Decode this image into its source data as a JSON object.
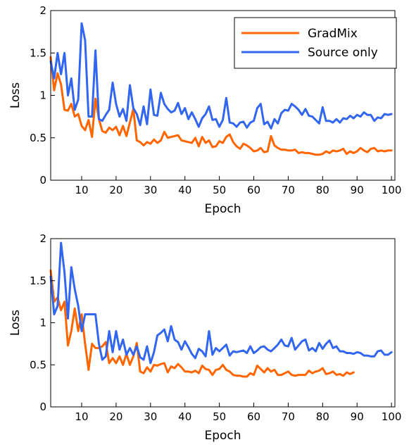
{
  "chart_data": [
    {
      "type": "line",
      "xlabel": "Epoch",
      "ylabel": "Loss",
      "xlim": [
        1,
        101
      ],
      "ylim": [
        0,
        2
      ],
      "x_ticks": [
        10,
        20,
        30,
        40,
        50,
        60,
        70,
        80,
        90,
        100
      ],
      "y_ticks": [
        0,
        0.5,
        1,
        1.5,
        2
      ],
      "y_tick_labels": [
        "0",
        "0.5",
        "1",
        "1.5",
        "2"
      ],
      "grid": false,
      "legend": "top-right",
      "series": [
        {
          "name": "GradMix",
          "color": "#ff6600",
          "x": [
            1,
            2,
            3,
            4,
            5,
            6,
            7,
            8,
            9,
            10,
            11,
            12,
            13,
            14,
            15,
            16,
            17,
            18,
            19,
            20,
            21,
            22,
            23,
            24,
            25,
            26,
            27,
            28,
            29,
            30,
            31,
            32,
            33,
            34,
            35,
            36,
            37,
            38,
            39,
            40,
            41,
            42,
            43,
            44,
            45,
            46,
            47,
            48,
            49,
            50,
            51,
            52,
            53,
            54,
            55,
            56,
            57,
            58,
            59,
            60,
            61,
            62,
            63,
            64,
            65,
            66,
            67,
            68,
            69,
            70,
            71,
            72,
            73,
            74,
            75,
            76,
            77,
            78,
            79,
            80,
            81,
            82,
            83,
            84,
            85,
            86,
            87,
            88,
            89,
            90,
            91,
            92,
            93,
            94,
            95,
            96,
            97,
            98,
            99,
            100
          ],
          "values": [
            1.45,
            1.06,
            1.26,
            1.13,
            0.83,
            0.82,
            0.9,
            0.75,
            0.78,
            0.64,
            0.59,
            0.71,
            0.51,
            0.96,
            0.72,
            0.58,
            0.56,
            0.62,
            0.59,
            0.63,
            0.53,
            0.64,
            0.52,
            0.68,
            0.84,
            0.47,
            0.45,
            0.41,
            0.45,
            0.43,
            0.48,
            0.44,
            0.47,
            0.57,
            0.5,
            0.51,
            0.52,
            0.53,
            0.47,
            0.46,
            0.45,
            0.44,
            0.5,
            0.4,
            0.51,
            0.44,
            0.47,
            0.39,
            0.4,
            0.46,
            0.44,
            0.51,
            0.54,
            0.45,
            0.4,
            0.37,
            0.43,
            0.41,
            0.38,
            0.34,
            0.35,
            0.38,
            0.33,
            0.34,
            0.52,
            0.41,
            0.38,
            0.36,
            0.36,
            0.35,
            0.35,
            0.36,
            0.32,
            0.33,
            0.32,
            0.32,
            0.31,
            0.3,
            0.3,
            0.31,
            0.34,
            0.32,
            0.35,
            0.34,
            0.35,
            0.37,
            0.31,
            0.34,
            0.32,
            0.34,
            0.38,
            0.35,
            0.33,
            0.37,
            0.38,
            0.34,
            0.35,
            0.34,
            0.35,
            0.35
          ]
        },
        {
          "name": "Source only",
          "color": "#3366ee",
          "x": [
            1,
            2,
            3,
            4,
            5,
            6,
            7,
            8,
            9,
            10,
            11,
            12,
            13,
            14,
            15,
            16,
            17,
            18,
            19,
            20,
            21,
            22,
            23,
            24,
            25,
            26,
            27,
            28,
            29,
            30,
            31,
            32,
            33,
            34,
            35,
            36,
            37,
            38,
            39,
            40,
            41,
            42,
            43,
            44,
            45,
            46,
            47,
            48,
            49,
            50,
            51,
            52,
            53,
            54,
            55,
            56,
            57,
            58,
            59,
            60,
            61,
            62,
            63,
            64,
            65,
            66,
            67,
            68,
            69,
            70,
            71,
            72,
            73,
            74,
            75,
            76,
            77,
            78,
            79,
            80,
            81,
            82,
            83,
            84,
            85,
            86,
            87,
            88,
            89,
            90,
            91,
            92,
            93,
            94,
            95,
            96,
            97,
            98,
            99,
            100
          ],
          "values": [
            1.4,
            1.2,
            1.5,
            1.25,
            1.5,
            1.0,
            1.2,
            0.83,
            0.95,
            1.85,
            1.65,
            0.75,
            0.75,
            1.53,
            0.72,
            0.7,
            0.77,
            0.83,
            1.15,
            0.9,
            0.75,
            0.84,
            0.7,
            1.12,
            0.85,
            0.78,
            0.65,
            0.87,
            0.66,
            1.07,
            0.77,
            0.76,
            1.03,
            0.9,
            0.84,
            0.8,
            0.82,
            0.91,
            0.78,
            0.85,
            0.72,
            0.8,
            0.72,
            0.63,
            0.73,
            0.78,
            0.87,
            0.71,
            0.72,
            0.63,
            0.71,
            0.97,
            0.68,
            0.67,
            0.63,
            0.68,
            0.69,
            0.62,
            0.68,
            0.7,
            0.85,
            0.9,
            0.66,
            0.69,
            0.61,
            0.72,
            0.67,
            0.79,
            0.83,
            0.82,
            0.9,
            0.87,
            0.83,
            0.77,
            0.84,
            0.76,
            0.75,
            0.71,
            0.67,
            0.86,
            0.7,
            0.7,
            0.68,
            0.72,
            0.68,
            0.73,
            0.72,
            0.76,
            0.73,
            0.77,
            0.75,
            0.8,
            0.77,
            0.77,
            0.7,
            0.74,
            0.73,
            0.78,
            0.77,
            0.78
          ]
        }
      ]
    },
    {
      "type": "line",
      "xlabel": "Epoch",
      "ylabel": "Loss",
      "xlim": [
        1,
        101
      ],
      "ylim": [
        0,
        2
      ],
      "x_ticks": [
        10,
        20,
        30,
        40,
        50,
        60,
        70,
        80,
        90,
        100
      ],
      "y_ticks": [
        0,
        0.5,
        1,
        1.5,
        2
      ],
      "y_tick_labels": [
        "0",
        "0.5",
        "1",
        "1.5",
        "2"
      ],
      "grid": false,
      "legend": "none",
      "series": [
        {
          "color": "#ff6600",
          "x": [
            1,
            2,
            3,
            4,
            5,
            6,
            7,
            8,
            9,
            10,
            11,
            12,
            13,
            14,
            15,
            16,
            17,
            18,
            19,
            20,
            21,
            22,
            23,
            24,
            25,
            26,
            27,
            28,
            29,
            30,
            31,
            32,
            33,
            34,
            35,
            36,
            37,
            38,
            39,
            40,
            41,
            42,
            43,
            44,
            45,
            46,
            47,
            48,
            49,
            50,
            51,
            52,
            53,
            54,
            55,
            56,
            57,
            58,
            59,
            60,
            61,
            62,
            63,
            64,
            65,
            66,
            67,
            68,
            69,
            70,
            71,
            72,
            73,
            74,
            75,
            76,
            77,
            78,
            79,
            80,
            81,
            82,
            83,
            84,
            85,
            86,
            87,
            88,
            89
          ],
          "values": [
            1.62,
            1.25,
            1.3,
            1.15,
            1.25,
            0.73,
            0.9,
            1.17,
            0.9,
            1.1,
            0.75,
            0.44,
            0.75,
            0.7,
            0.7,
            0.72,
            0.77,
            0.52,
            0.58,
            0.52,
            0.6,
            0.5,
            0.63,
            0.5,
            0.6,
            0.76,
            0.42,
            0.4,
            0.47,
            0.42,
            0.5,
            0.49,
            0.51,
            0.52,
            0.41,
            0.48,
            0.46,
            0.51,
            0.47,
            0.42,
            0.42,
            0.41,
            0.43,
            0.4,
            0.49,
            0.45,
            0.44,
            0.38,
            0.44,
            0.45,
            0.5,
            0.44,
            0.42,
            0.38,
            0.37,
            0.37,
            0.36,
            0.36,
            0.4,
            0.38,
            0.49,
            0.45,
            0.41,
            0.46,
            0.42,
            0.44,
            0.38,
            0.38,
            0.4,
            0.42,
            0.38,
            0.37,
            0.38,
            0.38,
            0.38,
            0.43,
            0.4,
            0.42,
            0.43,
            0.46,
            0.39,
            0.4,
            0.42,
            0.38,
            0.39,
            0.37,
            0.41,
            0.39,
            0.41
          ]
        },
        {
          "color": "#3366ee",
          "x": [
            1,
            2,
            3,
            4,
            5,
            6,
            7,
            8,
            9,
            10,
            11,
            12,
            13,
            14,
            15,
            16,
            17,
            18,
            19,
            20,
            21,
            22,
            23,
            24,
            25,
            26,
            27,
            28,
            29,
            30,
            31,
            32,
            33,
            34,
            35,
            36,
            37,
            38,
            39,
            40,
            41,
            42,
            43,
            44,
            45,
            46,
            47,
            48,
            49,
            50,
            51,
            52,
            53,
            54,
            55,
            56,
            57,
            58,
            59,
            60,
            61,
            62,
            63,
            64,
            65,
            66,
            67,
            68,
            69,
            70,
            71,
            72,
            73,
            74,
            75,
            76,
            77,
            78,
            79,
            80,
            81,
            82,
            83,
            84,
            85,
            86,
            87,
            88,
            89,
            90,
            91,
            92,
            93,
            94,
            95,
            96,
            97,
            98,
            99,
            100
          ],
          "values": [
            1.55,
            1.1,
            1.2,
            1.95,
            1.6,
            1.05,
            1.66,
            1.4,
            1.2,
            0.9,
            1.1,
            1.1,
            1.1,
            1.1,
            0.75,
            0.56,
            0.6,
            0.9,
            0.65,
            0.9,
            0.68,
            0.8,
            0.62,
            0.7,
            0.62,
            0.72,
            0.59,
            0.56,
            0.72,
            0.52,
            0.65,
            0.85,
            0.88,
            0.92,
            0.78,
            0.96,
            0.8,
            0.77,
            0.68,
            0.78,
            0.71,
            0.63,
            0.58,
            0.69,
            0.66,
            0.6,
            0.9,
            0.62,
            0.7,
            0.66,
            0.7,
            0.74,
            0.61,
            0.66,
            0.65,
            0.66,
            0.67,
            0.64,
            0.72,
            0.64,
            0.67,
            0.71,
            0.72,
            0.68,
            0.66,
            0.7,
            0.74,
            0.8,
            0.73,
            0.72,
            0.82,
            0.68,
            0.73,
            0.78,
            0.8,
            0.67,
            0.7,
            0.66,
            0.76,
            0.69,
            0.75,
            0.79,
            0.7,
            0.72,
            0.66,
            0.66,
            0.64,
            0.64,
            0.63,
            0.65,
            0.64,
            0.61,
            0.61,
            0.6,
            0.6,
            0.66,
            0.67,
            0.62,
            0.62,
            0.65
          ]
        }
      ]
    }
  ]
}
